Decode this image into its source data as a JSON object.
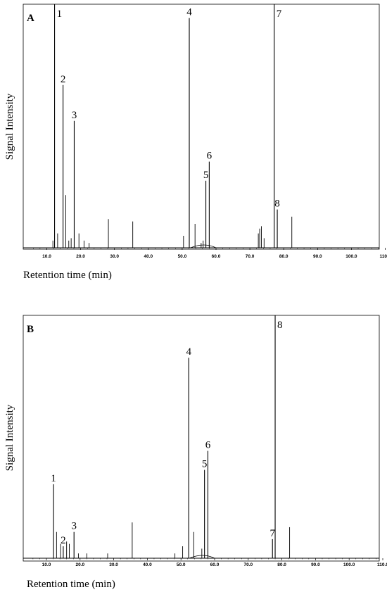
{
  "chart_data": [
    {
      "type": "line",
      "panel": "A",
      "xlabel": "Retention time (min)",
      "ylabel": "Signal Intensity",
      "xlim": [
        5,
        110
      ],
      "xticks": [
        "10.0",
        "20.0",
        "30.0",
        "40.0",
        "50.0",
        "60.0",
        "70.0",
        "80.0",
        "90.0",
        "100.0",
        "110.0"
      ],
      "ylim": [
        0,
        100
      ],
      "peaks": [
        {
          "x": 12.3,
          "y": 108,
          "label": "1"
        },
        {
          "x": 14.8,
          "y": 68,
          "label": "2"
        },
        {
          "x": 18.1,
          "y": 53,
          "label": "3"
        },
        {
          "x": 52.1,
          "y": 96,
          "label": "4"
        },
        {
          "x": 57.0,
          "y": 28,
          "label": "5"
        },
        {
          "x": 58.0,
          "y": 36,
          "label": "6"
        },
        {
          "x": 77.2,
          "y": 108,
          "label": "7"
        },
        {
          "x": 78.1,
          "y": 16,
          "label": "8"
        }
      ],
      "minor_peaks": [
        [
          11.8,
          3
        ],
        [
          13.2,
          6
        ],
        [
          15.6,
          22
        ],
        [
          16.5,
          3
        ],
        [
          17.2,
          4
        ],
        [
          19.5,
          6
        ],
        [
          21.0,
          3
        ],
        [
          22.5,
          2
        ],
        [
          28.2,
          12
        ],
        [
          35.4,
          11
        ],
        [
          50.4,
          5
        ],
        [
          53.8,
          10
        ],
        [
          55.6,
          2
        ],
        [
          56.2,
          3
        ],
        [
          72.5,
          6
        ],
        [
          72.9,
          8
        ],
        [
          73.4,
          9
        ],
        [
          74.2,
          4
        ],
        [
          82.4,
          13
        ]
      ]
    },
    {
      "type": "line",
      "panel": "B",
      "xlabel": "Retention time (min)",
      "ylabel": "Signal Intensity",
      "xlim": [
        5,
        110
      ],
      "xticks": [
        "10.0",
        "20.0",
        "30.0",
        "40.0",
        "50.0",
        "60.0",
        "70.0",
        "80.0",
        "90.0",
        "100.0",
        "110.0"
      ],
      "ylim": [
        0,
        100
      ],
      "peaks": [
        {
          "x": 12.1,
          "y": 31,
          "label": "1"
        },
        {
          "x": 15.0,
          "y": 5,
          "label": "2"
        },
        {
          "x": 18.2,
          "y": 11,
          "label": "3"
        },
        {
          "x": 52.3,
          "y": 84,
          "label": "4"
        },
        {
          "x": 57.0,
          "y": 37,
          "label": "5"
        },
        {
          "x": 58.0,
          "y": 45,
          "label": "6"
        },
        {
          "x": 77.2,
          "y": 8,
          "label": "7"
        },
        {
          "x": 78.0,
          "y": 108,
          "label": "8"
        }
      ],
      "minor_peaks": [
        [
          13.0,
          11
        ],
        [
          14.2,
          6
        ],
        [
          16.0,
          7
        ],
        [
          16.8,
          6
        ],
        [
          19.5,
          2
        ],
        [
          22.0,
          2
        ],
        [
          28.2,
          2
        ],
        [
          35.5,
          15
        ],
        [
          48.2,
          2
        ],
        [
          50.5,
          5
        ],
        [
          53.8,
          11
        ],
        [
          56.2,
          4
        ],
        [
          82.3,
          13
        ]
      ]
    }
  ]
}
